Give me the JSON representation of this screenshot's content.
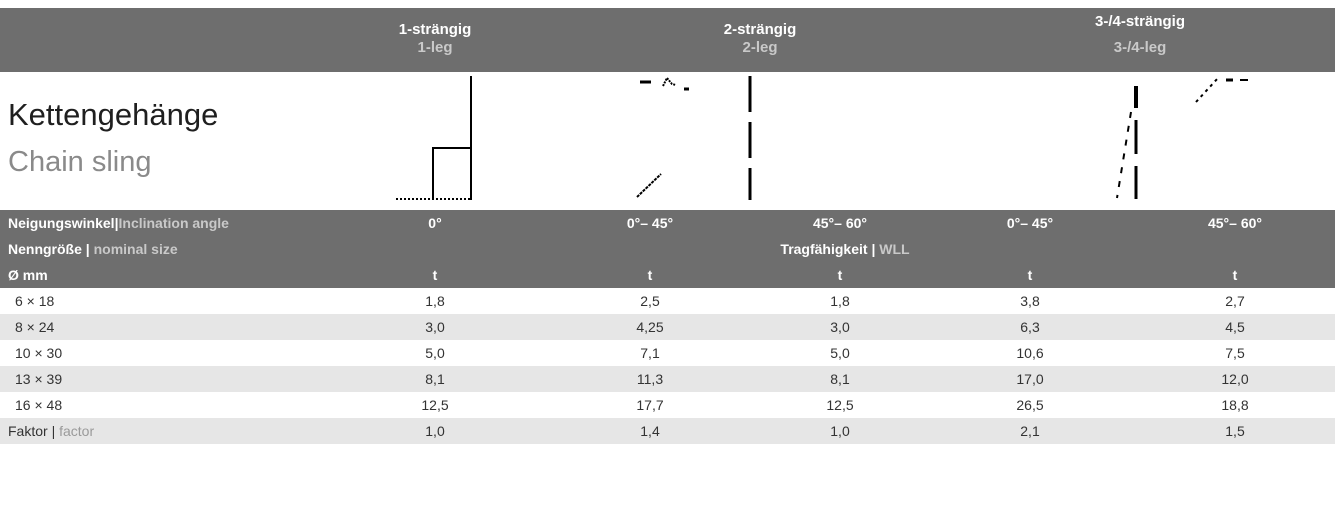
{
  "header": {
    "col1": {
      "de": "1-strängig",
      "en": "1-leg"
    },
    "col2": {
      "de": "2-strängig",
      "en": "2-leg"
    },
    "col3": {
      "de": "3-/4-strängig",
      "en": "3-/4-leg"
    }
  },
  "title": {
    "de": "Kettengehänge",
    "en": "Chain sling"
  },
  "row_angle": {
    "label_de": "Neigungswinkel",
    "sep": "|",
    "label_en": "Inclination angle",
    "values": [
      "0°",
      "0°– 45°",
      "45°– 60°",
      "0°– 45°",
      "45°– 60°"
    ]
  },
  "row_size": {
    "label_de": "Nenngröße | ",
    "label_en": "nominal size",
    "wll_de": "Tragfähigkeit | ",
    "wll_en": "WLL"
  },
  "row_unit": {
    "label": "Ø mm",
    "units": [
      "t",
      "t",
      "t",
      "t",
      "t"
    ]
  },
  "table": {
    "rows": [
      {
        "size": "6 × 18",
        "values": [
          "1,8",
          "2,5",
          "1,8",
          "3,8",
          "2,7"
        ]
      },
      {
        "size": "8 × 24",
        "values": [
          "3,0",
          "4,25",
          "3,0",
          "6,3",
          "4,5"
        ]
      },
      {
        "size": "10 × 30",
        "values": [
          "5,0",
          "7,1",
          "5,0",
          "10,6",
          "7,5"
        ]
      },
      {
        "size": "13 × 39",
        "values": [
          "8,1",
          "11,3",
          "8,1",
          "17,0",
          "12,0"
        ]
      },
      {
        "size": "16 × 48",
        "values": [
          "12,5",
          "17,7",
          "12,5",
          "26,5",
          "18,8"
        ]
      }
    ],
    "factor": {
      "label_de": "Faktor | ",
      "label_en": "factor",
      "values": [
        "1,0",
        "1,4",
        "1,0",
        "2,1",
        "1,5"
      ]
    }
  }
}
